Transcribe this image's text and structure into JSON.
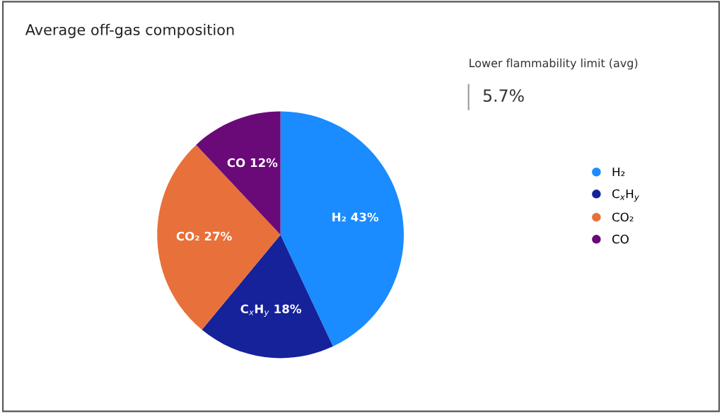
{
  "chart_data": {
    "type": "pie",
    "title": "Average off-gas composition",
    "categories": [
      "H₂",
      "C$_{x}$H$_{y}$",
      "CO₂",
      "CO"
    ],
    "values": [
      43,
      18,
      27,
      12
    ],
    "value_labels": [
      "43%",
      "18%",
      "27%",
      "12%"
    ],
    "colors": [
      "#1a8cff",
      "#16229a",
      "#e8703a",
      "#6a0a78"
    ],
    "legend": "right",
    "annotations": [
      "Lower flammability limit (avg)",
      "5.7%"
    ]
  }
}
